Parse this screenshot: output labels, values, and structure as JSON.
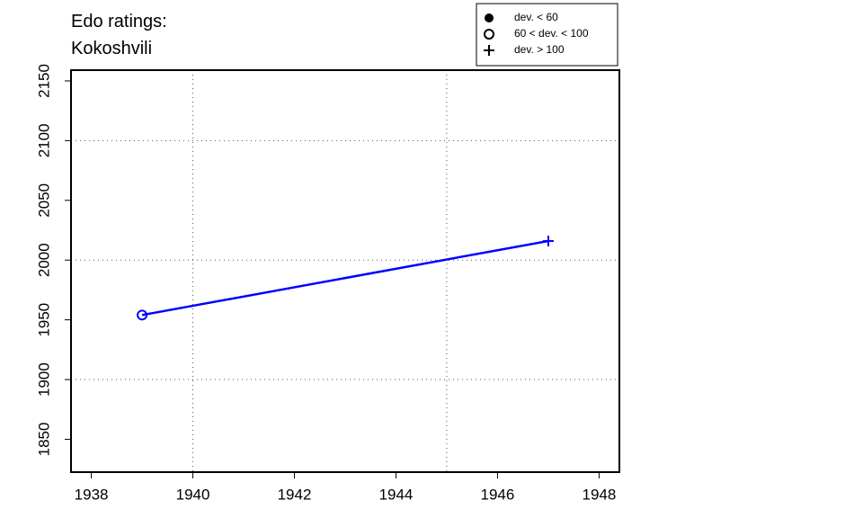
{
  "chart_data": {
    "type": "line",
    "title": [
      "Edo ratings:",
      "Kokoshvili"
    ],
    "x": [
      1939,
      1947
    ],
    "series": [
      {
        "color": "#0000ff",
        "values": [
          1954,
          2016
        ],
        "markers": [
          "circle",
          "plus"
        ]
      }
    ],
    "xlim": [
      1937.6,
      1948.4
    ],
    "ylim": [
      1822.5,
      2159
    ],
    "xticks": [
      1938,
      1940,
      1942,
      1944,
      1946,
      1948
    ],
    "yticks": [
      1850,
      1900,
      1950,
      2000,
      2050,
      2100,
      2150
    ],
    "xgrid": [
      1940,
      1945
    ],
    "ygrid": [
      1900,
      2000,
      2100
    ],
    "legend": {
      "position": "top-right",
      "entries": [
        {
          "label": "dev. < 60",
          "marker": "dot"
        },
        {
          "label": "60 < dev. < 100",
          "marker": "circle"
        },
        {
          "label": "dev. > 100",
          "marker": "plus"
        }
      ]
    }
  }
}
